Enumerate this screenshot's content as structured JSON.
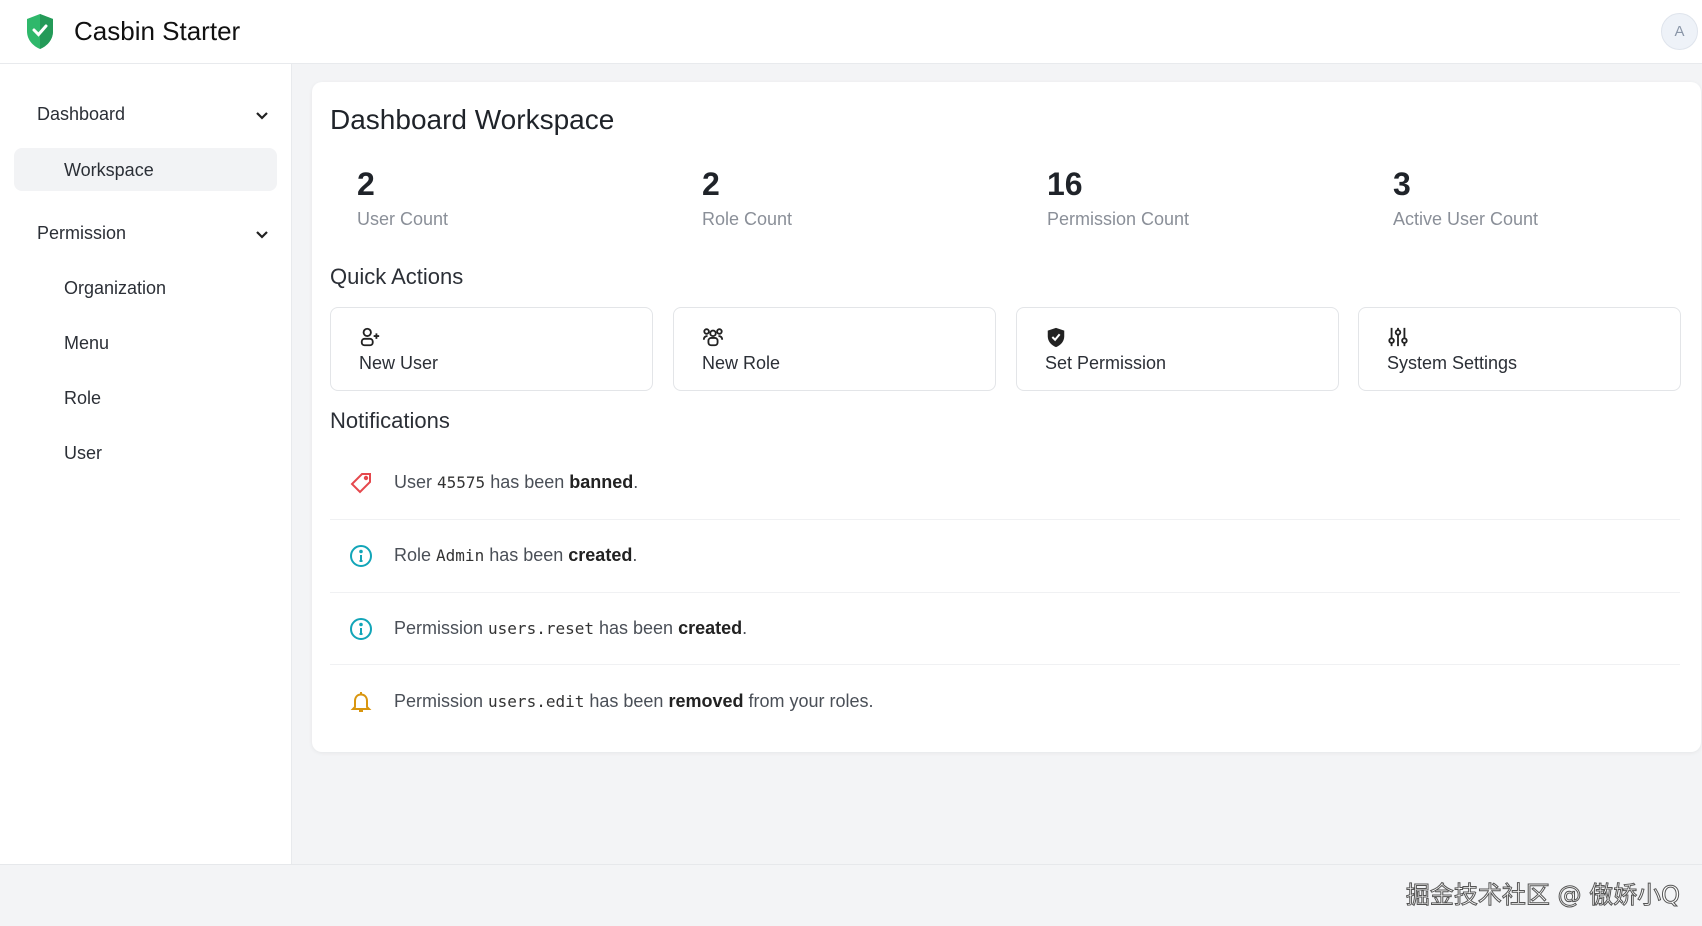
{
  "header": {
    "title": "Casbin Starter",
    "avatar_initial": "A"
  },
  "sidebar": {
    "groups": [
      {
        "label": "Dashboard",
        "items": [
          "Workspace"
        ]
      },
      {
        "label": "Permission",
        "items": [
          "Organization",
          "Menu",
          "Role",
          "User"
        ]
      }
    ],
    "active": "Workspace"
  },
  "main": {
    "title": "Dashboard Workspace",
    "stats": [
      {
        "value": "2",
        "label": "User Count"
      },
      {
        "value": "2",
        "label": "Role Count"
      },
      {
        "value": "16",
        "label": "Permission Count"
      },
      {
        "value": "3",
        "label": "Active User Count"
      }
    ],
    "quick_actions_title": "Quick Actions",
    "quick_actions": [
      {
        "label": "New User",
        "icon": "user-plus-icon"
      },
      {
        "label": "New Role",
        "icon": "users-icon"
      },
      {
        "label": "Set Permission",
        "icon": "shield-check-icon"
      },
      {
        "label": "System Settings",
        "icon": "sliders-icon"
      }
    ],
    "notifications_title": "Notifications",
    "notifications": [
      {
        "icon": "tag-icon",
        "color": "#e5484d",
        "pre": "User ",
        "code": "45575",
        "mid": " has been ",
        "bold": "banned",
        "post": "."
      },
      {
        "icon": "info-icon",
        "color": "#12a5b8",
        "pre": "Role ",
        "code": "Admin",
        "mid": " has been ",
        "bold": "created",
        "post": "."
      },
      {
        "icon": "info-icon",
        "color": "#12a5b8",
        "pre": "Permission ",
        "code": "users.reset",
        "mid": " has been ",
        "bold": "created",
        "post": "."
      },
      {
        "icon": "bell-icon",
        "color": "#d9960f",
        "pre": "Permission ",
        "code": "users.edit",
        "mid": " has been ",
        "bold": "removed",
        "post": " from your roles."
      }
    ]
  },
  "watermark": "掘金技术社区 @ 傲娇小Q",
  "colors": {
    "brand": "#22b573",
    "active_bg": "#f2f3f5"
  }
}
